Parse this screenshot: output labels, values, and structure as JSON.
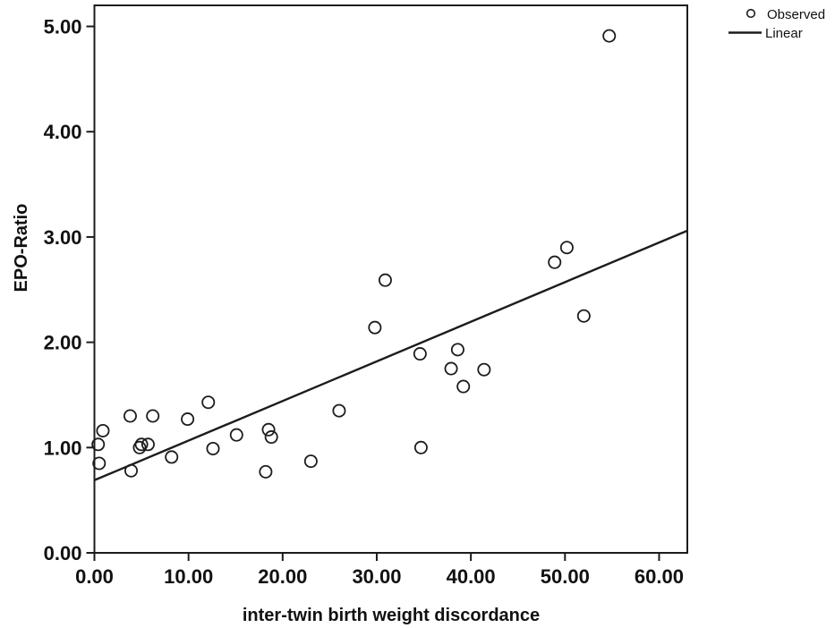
{
  "figure": {
    "background": "#ffffff"
  },
  "chart_data": {
    "type": "scatter",
    "title": "",
    "xlabel": "inter-twin birth weight discordance",
    "ylabel": "EPO-Ratio",
    "xlim": [
      0,
      63
    ],
    "ylim": [
      0,
      5.2
    ],
    "grid": false,
    "x_ticks": [
      {
        "value": 0,
        "label": "0.00"
      },
      {
        "value": 10,
        "label": "10.00"
      },
      {
        "value": 20,
        "label": "20.00"
      },
      {
        "value": 30,
        "label": "30.00"
      },
      {
        "value": 40,
        "label": "40.00"
      },
      {
        "value": 50,
        "label": "50.00"
      },
      {
        "value": 60,
        "label": "60.00"
      }
    ],
    "y_ticks": [
      {
        "value": 0,
        "label": "0.00"
      },
      {
        "value": 1,
        "label": "1.00"
      },
      {
        "value": 2,
        "label": "2.00"
      },
      {
        "value": 3,
        "label": "3.00"
      },
      {
        "value": 4,
        "label": "4.00"
      },
      {
        "value": 5,
        "label": "5.00"
      }
    ],
    "legend_position": "top-right-outside",
    "legend": [
      {
        "label": "Observed",
        "marker": "circle"
      },
      {
        "label": "Linear",
        "marker": "line"
      }
    ],
    "series": [
      {
        "name": "Observed",
        "type": "scatter",
        "marker": "open-circle",
        "color": "#1c1c1c",
        "points": [
          [
            0.4,
            1.03
          ],
          [
            0.5,
            0.85
          ],
          [
            0.9,
            1.16
          ],
          [
            3.8,
            1.3
          ],
          [
            3.9,
            0.78
          ],
          [
            4.8,
            1.0
          ],
          [
            5.0,
            1.03
          ],
          [
            5.7,
            1.03
          ],
          [
            6.2,
            1.3
          ],
          [
            8.2,
            0.91
          ],
          [
            9.9,
            1.27
          ],
          [
            12.1,
            1.43
          ],
          [
            12.6,
            0.99
          ],
          [
            15.1,
            1.12
          ],
          [
            18.2,
            0.77
          ],
          [
            18.5,
            1.17
          ],
          [
            18.8,
            1.1
          ],
          [
            23.0,
            0.87
          ],
          [
            26.0,
            1.35
          ],
          [
            29.8,
            2.14
          ],
          [
            30.9,
            2.59
          ],
          [
            34.6,
            1.89
          ],
          [
            34.7,
            1.0
          ],
          [
            37.9,
            1.75
          ],
          [
            38.6,
            1.93
          ],
          [
            39.2,
            1.58
          ],
          [
            41.4,
            1.74
          ],
          [
            48.9,
            2.76
          ],
          [
            50.2,
            2.9
          ],
          [
            52.0,
            2.25
          ],
          [
            54.7,
            4.91
          ]
        ]
      },
      {
        "name": "Linear",
        "type": "line",
        "color": "#1c1c1c",
        "x1": 0,
        "y1": 0.69,
        "x2": 63,
        "y2": 3.06
      }
    ],
    "colors": {
      "axis": "#1c1c1c",
      "text": "#111111",
      "background": "#ffffff"
    }
  }
}
